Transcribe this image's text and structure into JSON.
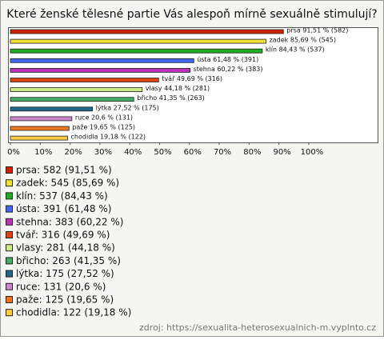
{
  "chart_data": {
    "type": "bar",
    "orientation": "horizontal",
    "title": "Které ženské tělesné partie Vás alespoň mírně sexuálně stimulují?",
    "categories": [
      "prsa",
      "zadek",
      "klín",
      "ústa",
      "stehna",
      "tvář",
      "vlasy",
      "břicho",
      "lýtka",
      "ruce",
      "paže",
      "chodidla"
    ],
    "values": [
      91.51,
      85.69,
      84.43,
      61.48,
      60.22,
      49.69,
      44.18,
      41.35,
      27.52,
      20.6,
      19.65,
      19.18
    ],
    "value_labels": [
      "prsa 91,51 % (582)",
      "zadek 85,69 % (545)",
      "klín 84,43 % (537)",
      "ústa 61,48 % (391)",
      "stehna 60,22 % (383)",
      "tvář 49,69 % (316)",
      "vlasy 44,18 % (281)",
      "břicho 41,35 % (263)",
      "lýtka 27,52 % (175)",
      "ruce 20,6 % (131)",
      "paže 19,65 % (125)",
      "chodidla 19,18 % (122)"
    ],
    "legend_labels": [
      "prsa: 582 (91,51 %)",
      "zadek: 545 (85,69 %)",
      "klín: 537 (84,43 %)",
      "ústa: 391 (61,48 %)",
      "stehna: 383 (60,22 %)",
      "tvář: 316 (49,69 %)",
      "vlasy: 281 (44,18 %)",
      "břicho: 263 (41,35 %)",
      "lýtka: 175 (27,52 %)",
      "ruce: 131 (20,6 %)",
      "paže: 125 (19,65 %)",
      "chodidla: 122 (19,18 %)"
    ],
    "colors": [
      "#cc2200",
      "#f2e03a",
      "#22aa22",
      "#4466ee",
      "#bb33bb",
      "#dd4411",
      "#cceb88",
      "#44aa66",
      "#226688",
      "#cc88cc",
      "#ee7722",
      "#ffcc44"
    ],
    "xlim": [
      0,
      122
    ],
    "xticks": [
      {
        "value": 0,
        "label": "0%"
      },
      {
        "value": 10,
        "label": "10%"
      },
      {
        "value": 20,
        "label": "20%"
      },
      {
        "value": 30,
        "label": "30%"
      },
      {
        "value": 40,
        "label": "40%"
      },
      {
        "value": 50,
        "label": "50%"
      },
      {
        "value": 60,
        "label": "60%"
      },
      {
        "value": 70,
        "label": "70%"
      },
      {
        "value": 80,
        "label": "80%"
      },
      {
        "value": 90,
        "label": "90%"
      },
      {
        "value": 100,
        "label": "100%"
      }
    ],
    "source": "zdroj: https://sexualita-heterosexualnich-m.vyplnto.cz"
  }
}
